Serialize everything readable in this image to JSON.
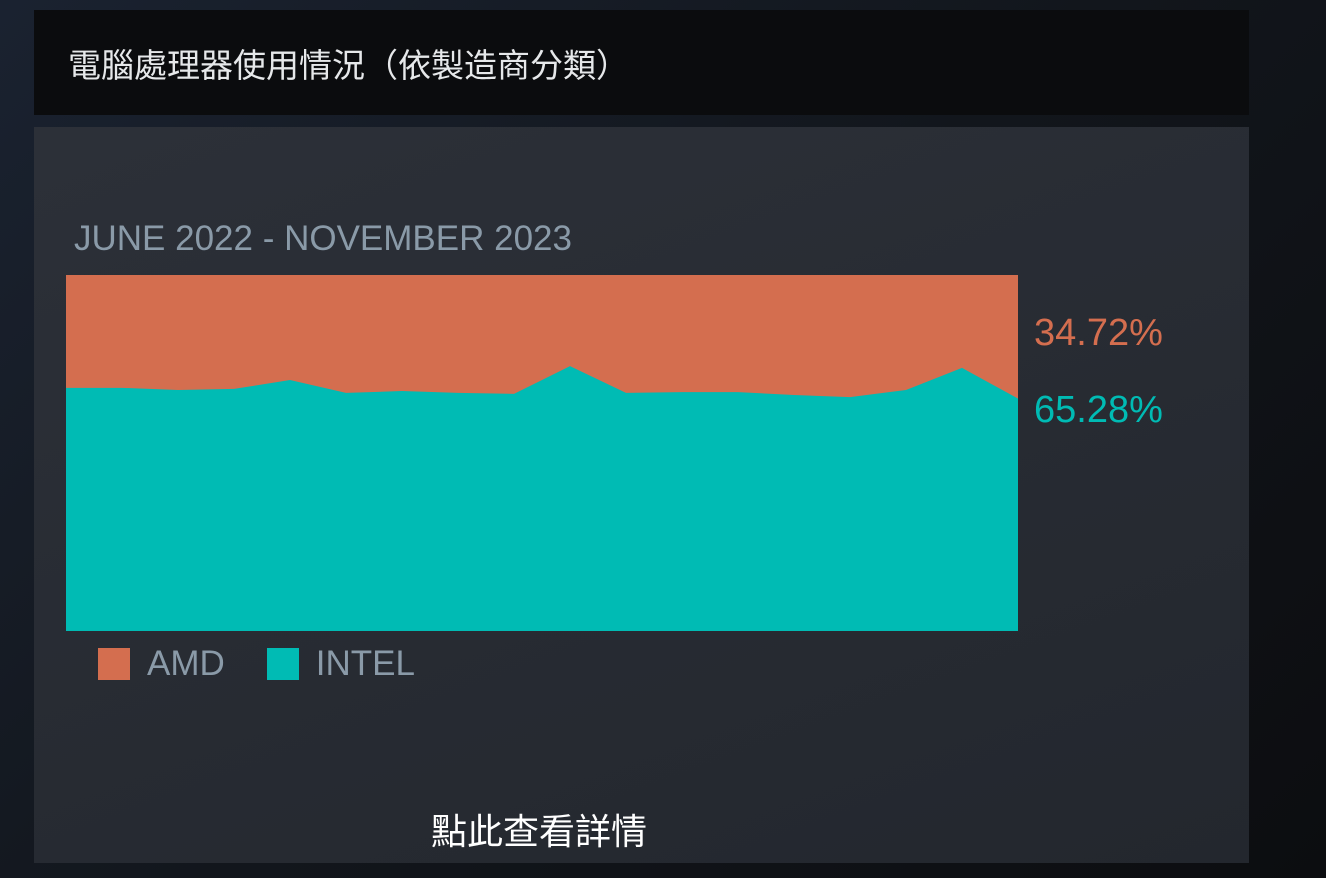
{
  "header": {
    "title": "電腦處理器使用情況（依製造商分類）"
  },
  "chart_data": {
    "type": "area",
    "stacked": true,
    "percent": true,
    "title": "JUNE 2022 - NOVEMBER 2023",
    "x": [
      "2022-06",
      "2022-07",
      "2022-08",
      "2022-09",
      "2022-10",
      "2022-11",
      "2022-12",
      "2023-01",
      "2023-02",
      "2023-03",
      "2023-04",
      "2023-05",
      "2023-06",
      "2023-07",
      "2023-08",
      "2023-09",
      "2023-10",
      "2023-11"
    ],
    "series": [
      {
        "name": "AMD",
        "color": "#d46e4f",
        "values": [
          31.7,
          31.7,
          32.3,
          32.0,
          29.5,
          33.1,
          32.6,
          33.1,
          33.4,
          25.6,
          33.1,
          32.9,
          32.9,
          33.7,
          34.3,
          32.3,
          26.1,
          34.72
        ]
      },
      {
        "name": "INTEL",
        "color": "#00bbb4",
        "values": [
          68.3,
          68.3,
          67.7,
          68.0,
          70.5,
          66.9,
          67.4,
          66.9,
          66.6,
          74.4,
          66.9,
          67.1,
          67.1,
          66.3,
          65.7,
          67.7,
          73.9,
          65.28
        ]
      }
    ],
    "ylim": [
      0,
      100
    ],
    "legend": "bottom-left",
    "latest_labels": {
      "amd": "34.72%",
      "intel": "65.28%"
    }
  },
  "footer": {
    "link": "點此查看詳情"
  }
}
